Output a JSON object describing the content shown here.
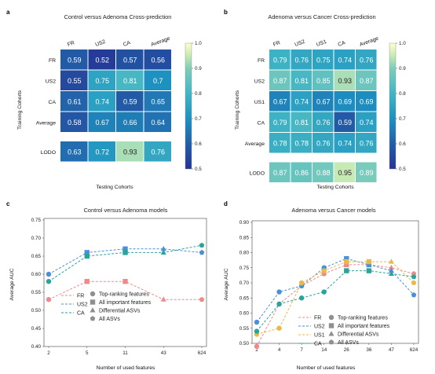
{
  "chart_data": [
    {
      "type": "heatmap",
      "panel": "a",
      "title": "Control versus Adenoma Cross-prediction",
      "xlabel": "Testing Cohorts",
      "ylabel": "Training Cohorts",
      "columns": [
        "FR",
        "US2",
        "CA",
        "Average"
      ],
      "rows": [
        "FR",
        "US2",
        "CA",
        "Average",
        "LODO"
      ],
      "values": [
        [
          "0.59",
          "0.52",
          "0.57",
          "0.56"
        ],
        [
          "0.55",
          "0.75",
          "0.81",
          "0.7"
        ],
        [
          "0.61",
          "0.74",
          "0.59",
          "0.65"
        ],
        [
          "0.58",
          "0.67",
          "0.66",
          "0.64"
        ],
        [
          "0.63",
          "0.72",
          "0.93",
          "0.76"
        ]
      ],
      "colorbar": {
        "min": 0.5,
        "max": 1.0,
        "ticks": [
          "1.0",
          "0.9",
          "0.8",
          "0.7",
          "0.6",
          "0.5"
        ]
      }
    },
    {
      "type": "heatmap",
      "panel": "b",
      "title": "Adenoma versus Cancer Cross-prediction",
      "xlabel": "Testing Cohorts",
      "ylabel": "Training Cohorts",
      "columns": [
        "FR",
        "US2",
        "US1",
        "CA",
        "Average"
      ],
      "rows": [
        "FR",
        "US2",
        "US1",
        "CA",
        "Average",
        "LODO"
      ],
      "values": [
        [
          "0.79",
          "0.76",
          "0.75",
          "0.74",
          "0.76"
        ],
        [
          "0.87",
          "0.81",
          "0.85",
          "0.93",
          "0.87"
        ],
        [
          "0.67",
          "0.74",
          "0.67",
          "0.69",
          "0.69"
        ],
        [
          "0.79",
          "0.81",
          "0.76",
          "0.59",
          "0.74"
        ],
        [
          "0.78",
          "0.78",
          "0.76",
          "0.74",
          "0.76"
        ],
        [
          "0.87",
          "0.86",
          "0.88",
          "0.95",
          "0.89"
        ]
      ],
      "colorbar": {
        "min": 0.5,
        "max": 1.0,
        "ticks": [
          "1.0",
          "0.9",
          "0.8",
          "0.7",
          "0.6",
          "0.5"
        ]
      }
    },
    {
      "type": "line",
      "panel": "c",
      "title": "Control versus Adenoma models",
      "xlabel": "Number of used features",
      "ylabel": "Average AUC",
      "categories": [
        "2",
        "5",
        "11",
        "43",
        "624"
      ],
      "ylim": [
        0.4,
        0.75
      ],
      "yticks": [
        "0.75",
        "0.70",
        "0.65",
        "0.60",
        "0.55",
        "0.50",
        "0.45",
        "0.40"
      ],
      "series": [
        {
          "name": "FR",
          "color": "#f08a8a",
          "values": [
            0.53,
            0.58,
            0.58,
            0.53,
            0.53
          ]
        },
        {
          "name": "US2",
          "color": "#4a90d9",
          "values": [
            0.6,
            0.66,
            0.67,
            0.67,
            0.66
          ]
        },
        {
          "name": "CA",
          "color": "#2aa39a",
          "values": [
            0.58,
            0.65,
            0.66,
            0.66,
            0.68
          ]
        }
      ],
      "markers": [
        "circle",
        "square",
        "square",
        "triangle",
        "pentagon"
      ],
      "marker_legend": [
        "Top-ranking features",
        "All important features",
        "Differential ASVs",
        "All ASVs"
      ]
    },
    {
      "type": "line",
      "panel": "d",
      "title": "Adenoma versus Cancer models",
      "xlabel": "Number of used features",
      "ylabel": "Average AUC",
      "categories": [
        "2",
        "4",
        "7",
        "14",
        "26",
        "36",
        "47",
        "624"
      ],
      "ylim": [
        0.5,
        0.9
      ],
      "yticks": [
        "0.90",
        "0.85",
        "0.80",
        "0.75",
        "0.70",
        "0.65",
        "0.60",
        "0.55",
        "0.50"
      ],
      "series": [
        {
          "name": "FR",
          "color": "#f08a8a",
          "values": [
            0.49,
            0.63,
            0.69,
            0.73,
            0.76,
            0.76,
            0.75,
            0.73
          ]
        },
        {
          "name": "US2",
          "color": "#4a90d9",
          "values": [
            0.57,
            0.67,
            0.69,
            0.75,
            0.78,
            0.76,
            0.74,
            0.66
          ]
        },
        {
          "name": "US1",
          "color": "#e6b94a",
          "values": [
            0.53,
            0.55,
            0.7,
            0.74,
            0.77,
            0.77,
            0.77,
            0.7
          ]
        },
        {
          "name": "CA",
          "color": "#2aa39a",
          "values": [
            0.54,
            0.63,
            0.65,
            0.67,
            0.74,
            0.74,
            0.73,
            0.72
          ]
        }
      ],
      "markers": [
        "circle",
        "circle",
        "circle",
        "circle",
        "square",
        "square",
        "triangle",
        "pentagon"
      ],
      "marker_legend": [
        "Top-ranking features",
        "All important features",
        "Differential ASVs",
        "All ASVs"
      ]
    }
  ],
  "panel_labels": [
    "a",
    "b",
    "c",
    "d"
  ],
  "watermark": "CSDN @拆西瓜"
}
